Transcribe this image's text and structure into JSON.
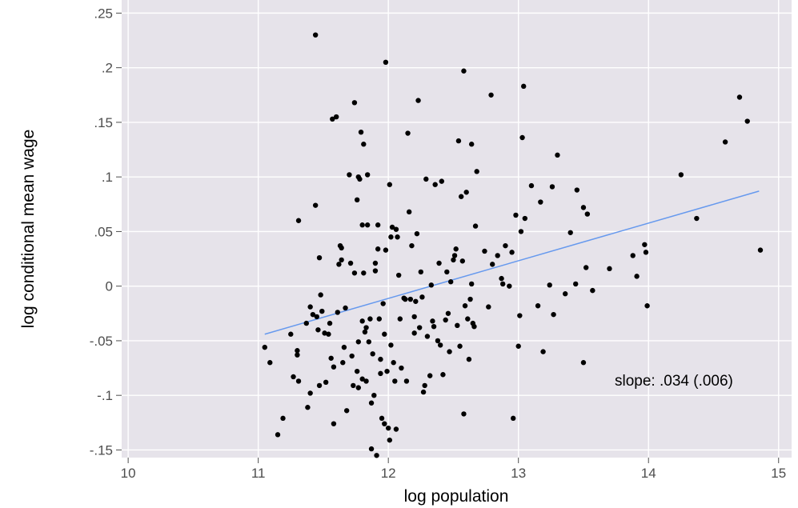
{
  "chart_data": {
    "type": "scatter",
    "xlabel": "log population",
    "ylabel": "log conditional mean wage",
    "xlim": [
      9.95,
      15.1
    ],
    "ylim": [
      -0.157,
      0.262
    ],
    "x_ticks": [
      10,
      11,
      12,
      13,
      14,
      15
    ],
    "x_tick_labels": [
      "10",
      "11",
      "12",
      "13",
      "14",
      "15"
    ],
    "y_ticks": [
      0.25,
      0.2,
      0.15,
      0.1,
      0.05,
      0,
      -0.05,
      -0.1,
      -0.15
    ],
    "y_tick_labels": [
      ".25",
      ".2",
      ".15",
      ".1",
      ".05",
      "0",
      "-.05",
      "-.1",
      "-.15"
    ],
    "grid": true,
    "annotation": "slope: .034 (.006)",
    "colors": {
      "panel": "#e6e3ea",
      "grid": "#ffffff",
      "points": "#000000",
      "fit_line": "#6699ee"
    },
    "fit_line": {
      "x": [
        11.05,
        14.85
      ],
      "y": [
        -0.044,
        0.087
      ]
    },
    "points": [
      [
        11.05,
        -0.056
      ],
      [
        11.09,
        -0.07
      ],
      [
        11.15,
        -0.136
      ],
      [
        11.19,
        -0.121
      ],
      [
        11.25,
        -0.044
      ],
      [
        11.27,
        -0.083
      ],
      [
        11.3,
        -0.059
      ],
      [
        11.3,
        -0.063
      ],
      [
        11.31,
        0.06
      ],
      [
        11.31,
        -0.087
      ],
      [
        11.37,
        -0.034
      ],
      [
        11.38,
        -0.111
      ],
      [
        11.4,
        -0.019
      ],
      [
        11.4,
        -0.098
      ],
      [
        11.42,
        -0.026
      ],
      [
        11.44,
        0.23
      ],
      [
        11.44,
        0.074
      ],
      [
        11.45,
        -0.028
      ],
      [
        11.46,
        -0.04
      ],
      [
        11.47,
        -0.091
      ],
      [
        11.47,
        0.026
      ],
      [
        11.48,
        -0.008
      ],
      [
        11.49,
        -0.023
      ],
      [
        11.51,
        -0.043
      ],
      [
        11.52,
        -0.088
      ],
      [
        11.54,
        -0.044
      ],
      [
        11.55,
        -0.034
      ],
      [
        11.56,
        -0.066
      ],
      [
        11.57,
        0.153
      ],
      [
        11.58,
        -0.074
      ],
      [
        11.58,
        -0.126
      ],
      [
        11.6,
        0.155
      ],
      [
        11.61,
        -0.024
      ],
      [
        11.62,
        0.02
      ],
      [
        11.63,
        0.037
      ],
      [
        11.64,
        0.035
      ],
      [
        11.64,
        0.024
      ],
      [
        11.65,
        -0.07
      ],
      [
        11.66,
        -0.056
      ],
      [
        11.67,
        -0.02
      ],
      [
        11.68,
        -0.114
      ],
      [
        11.7,
        0.102
      ],
      [
        11.71,
        0.021
      ],
      [
        11.72,
        -0.064
      ],
      [
        11.73,
        -0.091
      ],
      [
        11.74,
        0.168
      ],
      [
        11.74,
        0.012
      ],
      [
        11.76,
        0.079
      ],
      [
        11.76,
        -0.078
      ],
      [
        11.77,
        -0.051
      ],
      [
        11.77,
        -0.093
      ],
      [
        11.77,
        0.1
      ],
      [
        11.78,
        0.098
      ],
      [
        11.79,
        0.141
      ],
      [
        11.8,
        0.056
      ],
      [
        11.8,
        -0.085
      ],
      [
        11.8,
        -0.032
      ],
      [
        11.81,
        0.13
      ],
      [
        11.81,
        0.012
      ],
      [
        11.82,
        -0.042
      ],
      [
        11.83,
        -0.087
      ],
      [
        11.83,
        -0.038
      ],
      [
        11.84,
        0.056
      ],
      [
        11.84,
        0.102
      ],
      [
        11.85,
        -0.051
      ],
      [
        11.86,
        -0.03
      ],
      [
        11.87,
        -0.107
      ],
      [
        11.87,
        -0.149
      ],
      [
        11.88,
        -0.062
      ],
      [
        11.89,
        -0.1
      ],
      [
        11.9,
        0.021
      ],
      [
        11.9,
        0.014
      ],
      [
        11.91,
        -0.155
      ],
      [
        11.92,
        0.056
      ],
      [
        11.92,
        0.034
      ],
      [
        11.93,
        -0.03
      ],
      [
        11.94,
        -0.08
      ],
      [
        11.94,
        -0.067
      ],
      [
        11.95,
        -0.121
      ],
      [
        11.96,
        -0.016
      ],
      [
        11.97,
        -0.044
      ],
      [
        11.97,
        -0.126
      ],
      [
        11.98,
        0.033
      ],
      [
        11.98,
        0.205
      ],
      [
        11.99,
        -0.078
      ],
      [
        12.0,
        -0.13
      ],
      [
        12.01,
        -0.141
      ],
      [
        12.01,
        0.093
      ],
      [
        12.02,
        0.045
      ],
      [
        12.02,
        -0.054
      ],
      [
        12.03,
        0.054
      ],
      [
        12.04,
        -0.07
      ],
      [
        12.05,
        -0.087
      ],
      [
        12.06,
        0.052
      ],
      [
        12.06,
        -0.131
      ],
      [
        12.07,
        0.045
      ],
      [
        12.08,
        0.01
      ],
      [
        12.09,
        -0.03
      ],
      [
        12.1,
        -0.075
      ],
      [
        12.12,
        -0.011
      ],
      [
        12.13,
        -0.012
      ],
      [
        12.14,
        -0.087
      ],
      [
        12.15,
        0.14
      ],
      [
        12.16,
        0.068
      ],
      [
        12.17,
        -0.012
      ],
      [
        12.18,
        0.037
      ],
      [
        12.2,
        -0.043
      ],
      [
        12.2,
        -0.028
      ],
      [
        12.21,
        -0.014
      ],
      [
        12.22,
        0.048
      ],
      [
        12.23,
        0.17
      ],
      [
        12.24,
        -0.038
      ],
      [
        12.25,
        0.013
      ],
      [
        12.26,
        -0.01
      ],
      [
        12.27,
        -0.097
      ],
      [
        12.28,
        -0.091
      ],
      [
        12.29,
        0.098
      ],
      [
        12.3,
        -0.046
      ],
      [
        12.32,
        -0.082
      ],
      [
        12.33,
        0.001
      ],
      [
        12.34,
        -0.032
      ],
      [
        12.35,
        -0.037
      ],
      [
        12.36,
        0.093
      ],
      [
        12.38,
        -0.05
      ],
      [
        12.39,
        0.021
      ],
      [
        12.4,
        -0.054
      ],
      [
        12.41,
        0.096
      ],
      [
        12.42,
        -0.081
      ],
      [
        12.44,
        -0.031
      ],
      [
        12.45,
        0.013
      ],
      [
        12.46,
        -0.025
      ],
      [
        12.47,
        -0.06
      ],
      [
        12.48,
        0.004
      ],
      [
        12.5,
        0.024
      ],
      [
        12.51,
        0.028
      ],
      [
        12.52,
        0.034
      ],
      [
        12.53,
        -0.036
      ],
      [
        12.54,
        0.133
      ],
      [
        12.55,
        -0.055
      ],
      [
        12.56,
        0.082
      ],
      [
        12.57,
        0.023
      ],
      [
        12.58,
        -0.117
      ],
      [
        12.58,
        0.197
      ],
      [
        12.59,
        -0.018
      ],
      [
        12.6,
        0.086
      ],
      [
        12.61,
        -0.03
      ],
      [
        12.62,
        -0.067
      ],
      [
        12.63,
        -0.012
      ],
      [
        12.64,
        0.002
      ],
      [
        12.64,
        0.13
      ],
      [
        12.65,
        -0.034
      ],
      [
        12.66,
        -0.037
      ],
      [
        12.67,
        0.055
      ],
      [
        12.68,
        0.105
      ],
      [
        12.74,
        0.032
      ],
      [
        12.77,
        -0.019
      ],
      [
        12.79,
        0.175
      ],
      [
        12.8,
        0.02
      ],
      [
        12.84,
        0.028
      ],
      [
        12.87,
        0.007
      ],
      [
        12.88,
        0.002
      ],
      [
        12.9,
        0.037
      ],
      [
        12.93,
        0.0
      ],
      [
        12.95,
        0.031
      ],
      [
        12.96,
        -0.121
      ],
      [
        12.98,
        0.065
      ],
      [
        13.0,
        -0.055
      ],
      [
        13.01,
        -0.027
      ],
      [
        13.02,
        0.05
      ],
      [
        13.03,
        0.136
      ],
      [
        13.04,
        0.183
      ],
      [
        13.05,
        0.062
      ],
      [
        13.1,
        0.092
      ],
      [
        13.15,
        -0.018
      ],
      [
        13.17,
        0.077
      ],
      [
        13.19,
        -0.06
      ],
      [
        13.24,
        0.001
      ],
      [
        13.26,
        0.091
      ],
      [
        13.27,
        -0.026
      ],
      [
        13.3,
        0.12
      ],
      [
        13.36,
        -0.007
      ],
      [
        13.4,
        0.049
      ],
      [
        13.44,
        0.002
      ],
      [
        13.45,
        0.088
      ],
      [
        13.5,
        0.072
      ],
      [
        13.52,
        0.017
      ],
      [
        13.53,
        0.066
      ],
      [
        13.57,
        -0.004
      ],
      [
        13.7,
        0.016
      ],
      [
        13.88,
        0.028
      ],
      [
        13.91,
        0.009
      ],
      [
        13.97,
        0.038
      ],
      [
        13.98,
        0.031
      ],
      [
        13.99,
        -0.018
      ],
      [
        14.25,
        0.102
      ],
      [
        14.37,
        0.062
      ],
      [
        14.59,
        0.132
      ],
      [
        14.7,
        0.173
      ],
      [
        14.76,
        0.151
      ],
      [
        14.86,
        0.033
      ],
      [
        13.5,
        -0.07
      ]
    ]
  }
}
